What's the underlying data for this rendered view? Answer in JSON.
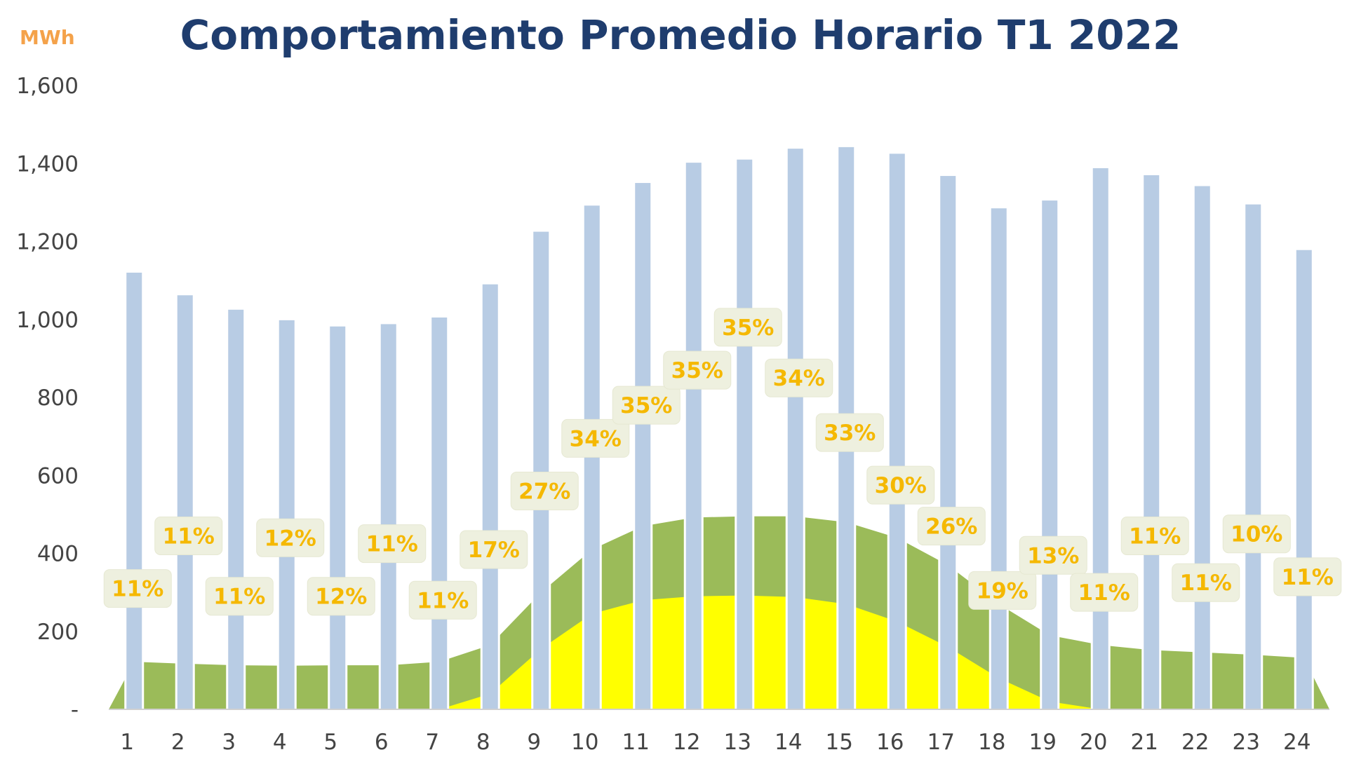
{
  "chart_data": {
    "type": "bar",
    "title": "Comportamiento Promedio Horario T1 2022",
    "unit_label": "MWh",
    "categories": [
      "1",
      "2",
      "3",
      "4",
      "5",
      "6",
      "7",
      "8",
      "9",
      "10",
      "11",
      "12",
      "13",
      "14",
      "15",
      "16",
      "17",
      "18",
      "19",
      "20",
      "21",
      "22",
      "23",
      "24"
    ],
    "ylim": [
      0,
      1600
    ],
    "yticks": [
      0,
      200,
      400,
      600,
      800,
      1000,
      1200,
      1400,
      1600
    ],
    "ytick_labels": [
      "-",
      "200",
      "400",
      "600",
      "800",
      "1,000",
      "1,200",
      "1,400",
      "1,600"
    ],
    "grid": false,
    "series": [
      {
        "kind": "bar",
        "color": "#b8cce4",
        "values": [
          1120,
          1062,
          1025,
          998,
          982,
          988,
          1005,
          1090,
          1225,
          1292,
          1350,
          1402,
          1410,
          1438,
          1442,
          1425,
          1368,
          1285,
          1305,
          1388,
          1370,
          1342,
          1295,
          1178
        ]
      },
      {
        "kind": "area",
        "color": "#9bbb59",
        "values": [
          122,
          117,
          113,
          112,
          113,
          113,
          122,
          165,
          300,
          410,
          470,
          492,
          495,
          495,
          480,
          440,
          370,
          270,
          190,
          165,
          152,
          146,
          140,
          132
        ]
      },
      {
        "kind": "area",
        "color": "#ffff00",
        "values": [
          0,
          0,
          0,
          0,
          0,
          0,
          0,
          40,
          155,
          245,
          280,
          290,
          292,
          288,
          270,
          225,
          160,
          80,
          20,
          0,
          0,
          0,
          0,
          0
        ]
      }
    ],
    "labels": [
      "11%",
      "11%",
      "11%",
      "12%",
      "12%",
      "11%",
      "11%",
      "17%",
      "27%",
      "34%",
      "35%",
      "35%",
      "35%",
      "34%",
      "33%",
      "30%",
      "26%",
      "19%",
      "13%",
      "11%",
      "11%",
      "11%",
      "10%",
      "11%"
    ],
    "label_y": [
      310,
      445,
      290,
      440,
      290,
      425,
      280,
      410,
      560,
      695,
      780,
      870,
      980,
      850,
      710,
      575,
      470,
      305,
      395,
      300,
      445,
      325,
      450,
      340
    ]
  }
}
